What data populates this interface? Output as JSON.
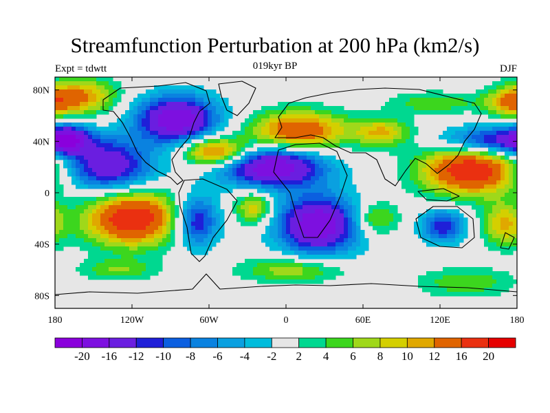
{
  "title": "Streamfunction Perturbation at 200 hPa (km2/s)",
  "left_label": "Expt = tdwtt",
  "center_label": "019kyr BP",
  "right_label": "DJF",
  "lon_ticks": [
    {
      "value": -180,
      "label": "180"
    },
    {
      "value": -120,
      "label": "120W"
    },
    {
      "value": -60,
      "label": "60W"
    },
    {
      "value": 0,
      "label": "0"
    },
    {
      "value": 60,
      "label": "60E"
    },
    {
      "value": 120,
      "label": "120E"
    },
    {
      "value": 180,
      "label": "180"
    }
  ],
  "lat_ticks": [
    {
      "value": 80,
      "label": "80N"
    },
    {
      "value": 40,
      "label": "40N"
    },
    {
      "value": 0,
      "label": "0"
    },
    {
      "value": -40,
      "label": "40S"
    },
    {
      "value": -80,
      "label": "80S"
    }
  ],
  "colorbar": {
    "colors": [
      "#8a00dc",
      "#7d10e0",
      "#6a1ee0",
      "#1f1fd8",
      "#0b5fe0",
      "#0a82e0",
      "#0aa0e0",
      "#00bcdc",
      "#e6e6e6",
      "#00d890",
      "#3cd61e",
      "#9fd81a",
      "#d4cf00",
      "#e0a800",
      "#e06400",
      "#ea3010",
      "#e60000"
    ],
    "levels": [
      "-20",
      "-16",
      "-12",
      "-10",
      "-8",
      "-6",
      "-4",
      "-2",
      "2",
      "4",
      "6",
      "8",
      "10",
      "12",
      "16",
      "20"
    ]
  },
  "field_background_color": "#e6e6e6",
  "anomalies": [
    {
      "lon": -140,
      "lat": 20,
      "amp": -16,
      "sx": 25,
      "sy": 14
    },
    {
      "lon": -85,
      "lat": 57,
      "amp": -20,
      "sx": 22,
      "sy": 13
    },
    {
      "lon": -70,
      "lat": -22,
      "amp": -14,
      "sx": 12,
      "sy": 14
    },
    {
      "lon": -10,
      "lat": 20,
      "amp": -20,
      "sx": 28,
      "sy": 11
    },
    {
      "lon": 25,
      "lat": -25,
      "amp": -20,
      "sx": 22,
      "sy": 16
    },
    {
      "lon": 122,
      "lat": -26,
      "amp": -12,
      "sx": 12,
      "sy": 9
    },
    {
      "lon": 165,
      "lat": 40,
      "amp": -16,
      "sx": 30,
      "sy": 8
    },
    {
      "lon": -170,
      "lat": 42,
      "amp": -12,
      "sx": 10,
      "sy": 8
    },
    {
      "lon": -120,
      "lat": -20,
      "amp": 20,
      "sx": 26,
      "sy": 15
    },
    {
      "lon": -160,
      "lat": 75,
      "amp": 12,
      "sx": 20,
      "sy": 10
    },
    {
      "lon": -55,
      "lat": 32,
      "amp": 16,
      "sx": 18,
      "sy": 8
    },
    {
      "lon": 10,
      "lat": 48,
      "amp": 16,
      "sx": 26,
      "sy": 11
    },
    {
      "lon": 75,
      "lat": 47,
      "amp": 10,
      "sx": 16,
      "sy": 8
    },
    {
      "lon": 145,
      "lat": 18,
      "amp": 20,
      "sx": 28,
      "sy": 14
    },
    {
      "lon": -25,
      "lat": -12,
      "amp": 10,
      "sx": 10,
      "sy": 9
    },
    {
      "lon": 70,
      "lat": -20,
      "amp": 8,
      "sx": 12,
      "sy": 9
    },
    {
      "lon": 5,
      "lat": -60,
      "amp": 8,
      "sx": 28,
      "sy": 7
    },
    {
      "lon": -130,
      "lat": -60,
      "amp": 6,
      "sx": 20,
      "sy": 6
    },
    {
      "lon": 170,
      "lat": -25,
      "amp": 10,
      "sx": 12,
      "sy": 12
    },
    {
      "lon": 175,
      "lat": 70,
      "amp": 10,
      "sx": 14,
      "sy": 8
    },
    {
      "lon": 115,
      "lat": 70,
      "amp": 6,
      "sx": 24,
      "sy": 6
    },
    {
      "lon": 140,
      "lat": -70,
      "amp": 6,
      "sx": 26,
      "sy": 8
    }
  ]
}
